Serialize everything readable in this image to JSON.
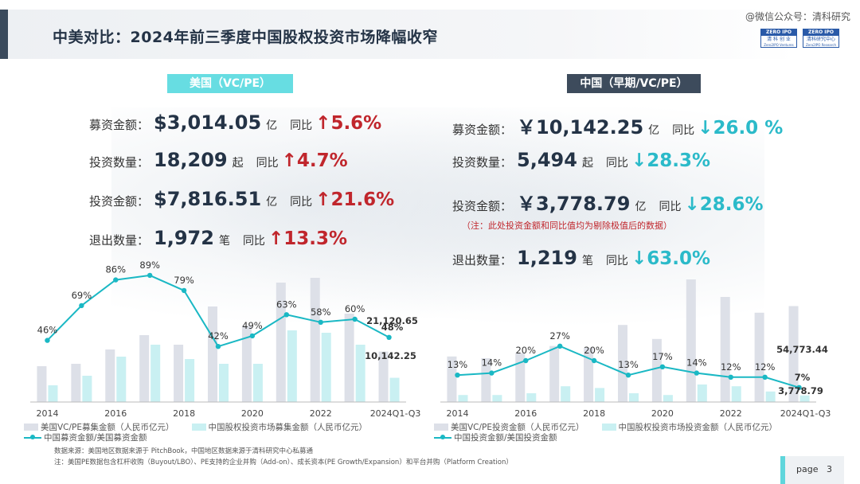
{
  "header": {
    "title": "中美对比：2024年前三季度中国股权投资市场降幅收窄",
    "watermark": "@微信公众号：清科研究",
    "logo1": {
      "top": "ZERO IPO",
      "bottom": "清 科 创 业",
      "sub": "Zero2IPO Ventures"
    },
    "logo2": {
      "top": "ZERO IPO",
      "bottom": "清科研究中心",
      "sub": "Zero2IPO Research"
    }
  },
  "us": {
    "heading": "美国（VC/PE）",
    "yoy_label": "同比",
    "stats": [
      {
        "label": "募资金额：",
        "value": "$3,014.05",
        "unit": "亿",
        "change": "5.6%",
        "direction": "up"
      },
      {
        "label": "投资数量：",
        "value": "18,209",
        "unit": "起",
        "change": "4.7%",
        "direction": "up"
      },
      {
        "label": "投资金额：",
        "value": "$7,816.51",
        "unit": "亿",
        "change": "21.6%",
        "direction": "up"
      },
      {
        "label": "退出数量：",
        "value": "1,972",
        "unit": "笔",
        "change": "13.3%",
        "direction": "up"
      }
    ]
  },
  "cn": {
    "heading": "中国（早期/VC/PE）",
    "yoy_label": "同比",
    "stats": [
      {
        "label": "募资金额：",
        "value": "￥10,142.25",
        "unit": "亿",
        "change": "26.0 %",
        "direction": "down"
      },
      {
        "label": "投资数量：",
        "value": "5,494",
        "unit": "起",
        "change": "28.3%",
        "direction": "down"
      },
      {
        "label": "投资金额：",
        "value": "￥3,778.79",
        "unit": "亿",
        "change": "28.6%",
        "direction": "down"
      },
      {
        "label": "退出数量：",
        "value": "1,219",
        "unit": "笔",
        "change": "63.0%",
        "direction": "down"
      }
    ],
    "note": "（注：此处投资金额和同比值均为剔除极值后的数据）"
  },
  "colors": {
    "us_bar": "#dde0e8",
    "cn_bar": "#c9f0f2",
    "line": "#1ab8c4",
    "up": "#c0262c",
    "down": "#2bbac9"
  },
  "chart_data": [
    {
      "type": "bar",
      "x_tick_labels": [
        "2014",
        "2016",
        "2018",
        "2020",
        "2022",
        "2024Q1-Q3"
      ],
      "categories": [
        "2014",
        "2015",
        "2016",
        "2017",
        "2018",
        "2019",
        "2020",
        "2021",
        "2022",
        "2023",
        "2024Q1-Q3"
      ],
      "series": [
        {
          "name": "美国VC/PE募集金额（人民币亿元）",
          "kind": "bar",
          "values": [
            15000,
            16000,
            22000,
            28000,
            24000,
            40000,
            32000,
            50000,
            52000,
            37000,
            21120.65
          ]
        },
        {
          "name": "中国股权投资市场募集金额（人民币亿元）",
          "kind": "bar",
          "values": [
            7000,
            11000,
            19000,
            24000,
            18000,
            16000,
            16000,
            30000,
            29000,
            24000,
            10142.25
          ]
        },
        {
          "name": "中国募资金额/美国募资金额",
          "kind": "line",
          "values": [
            46,
            69,
            86,
            89,
            79,
            42,
            49,
            63,
            58,
            60,
            48
          ],
          "unit": "%"
        }
      ],
      "data_labels": {
        "us_last": "21,120.65",
        "cn_last": "10,142.25"
      }
    },
    {
      "type": "bar",
      "x_tick_labels": [
        "2014",
        "2016",
        "2018",
        "2020",
        "2022",
        "2024Q1-Q3"
      ],
      "categories": [
        "2014",
        "2015",
        "2016",
        "2017",
        "2018",
        "2019",
        "2020",
        "2021",
        "2022",
        "2023",
        "2024Q1-Q3"
      ],
      "series": [
        {
          "name": "美国VC/PE投资金额（人民币亿元）",
          "kind": "bar",
          "values": [
            26000,
            25000,
            28000,
            32000,
            31000,
            44000,
            36000,
            70000,
            60000,
            51000,
            54773.44
          ]
        },
        {
          "name": "中国股权投资市场投资金额（人民币亿元）",
          "kind": "bar",
          "values": [
            4000,
            4000,
            5000,
            9000,
            8000,
            5000,
            4000,
            10000,
            9000,
            6000,
            3778.79
          ]
        },
        {
          "name": "中国投资金额/美国投资金额",
          "kind": "line",
          "values": [
            13,
            14,
            20,
            27,
            20,
            13,
            17,
            14,
            12,
            12,
            7
          ],
          "unit": "%"
        }
      ],
      "data_labels": {
        "us_last": "54,773.44",
        "cn_last": "3,778.79"
      }
    }
  ],
  "source": {
    "line1": "数据来源：美国地区数据来源于 PitchBook，中国地区数据来源于清科研究中心私募通",
    "line2": "注：美国PE数据包含杠杆收购（Buyout/LBO）、PE支持的企业并购（Add-on）、成长资本(PE Growth/Expansion）和平台并购（Platform Creation）"
  },
  "footer": {
    "page_label": "page",
    "page_number": "3"
  }
}
